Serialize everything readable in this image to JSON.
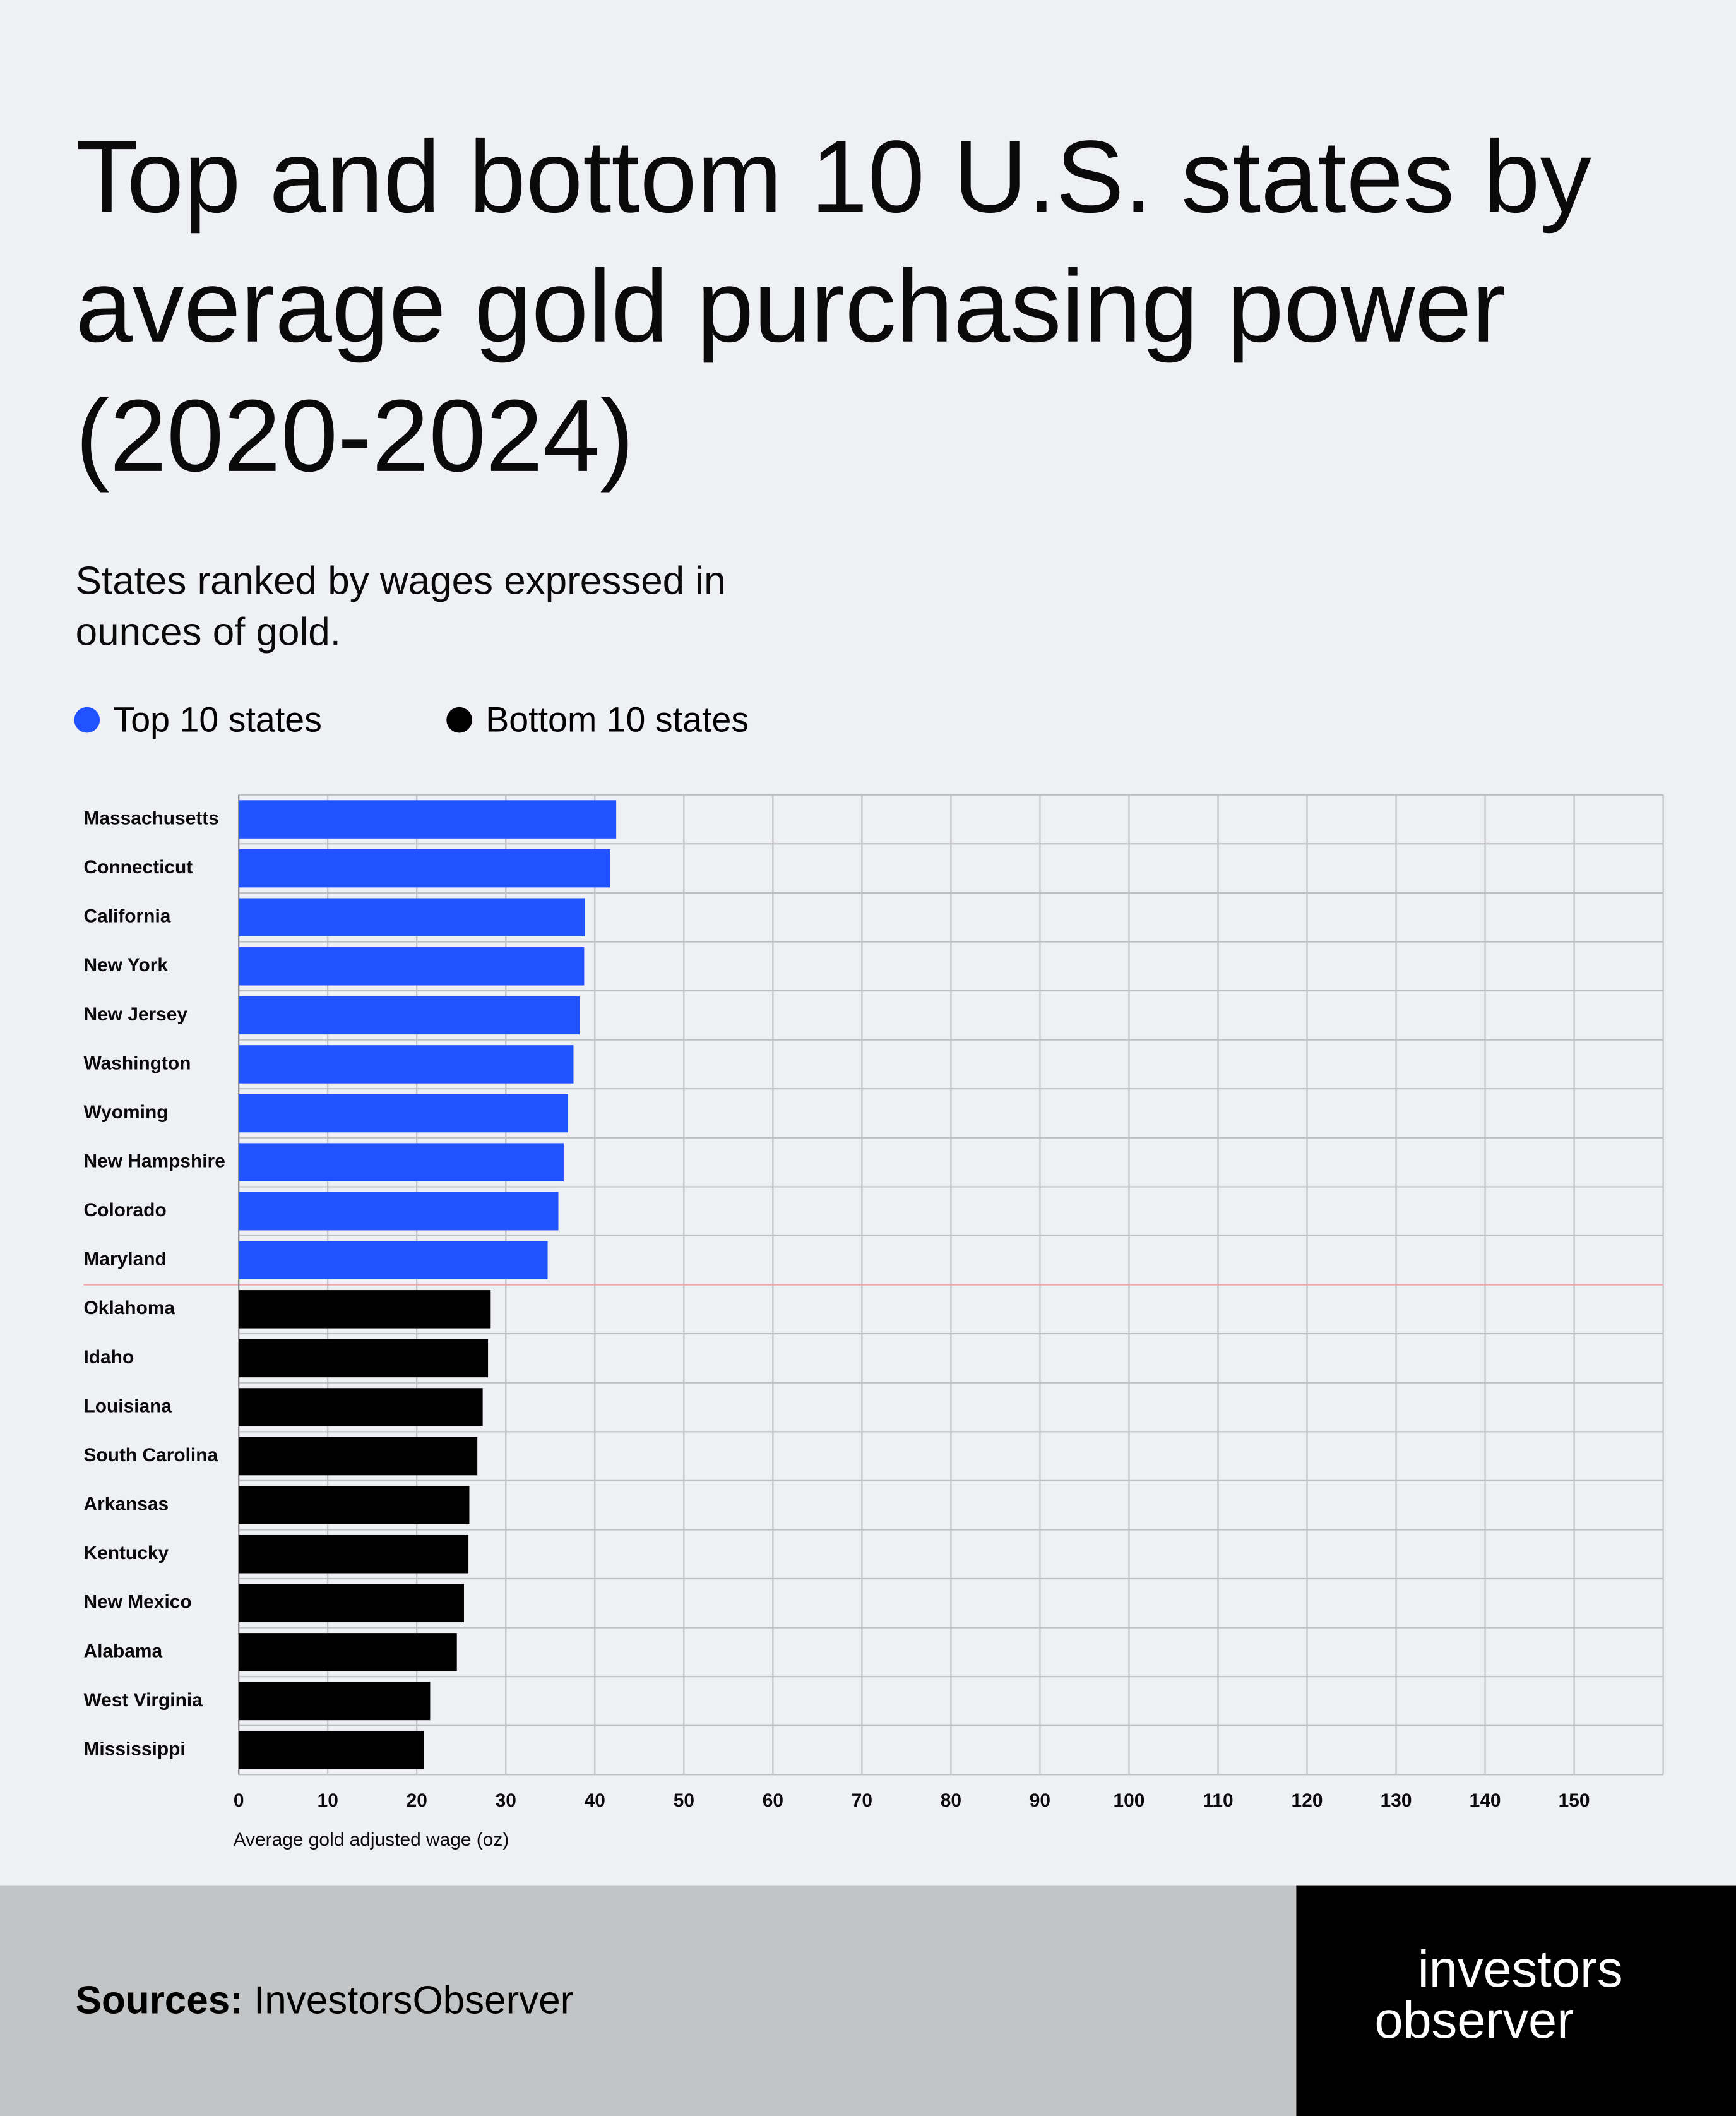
{
  "chart_data": {
    "type": "bar",
    "orientation": "horizontal",
    "title": "Top and bottom 10 U.S. states by average gold purchasing power (2020-2024)",
    "subtitle": "States ranked by wages expressed in ounces of gold.",
    "x_label": "Average gold adjusted wage (oz)",
    "categories": [
      "Massachusetts",
      "Connecticut",
      "California",
      "New York",
      "New Jersey",
      "Washington",
      "Wyoming",
      "New Hampshire",
      "Colorado",
      "Maryland",
      "Oklahoma",
      "Idaho",
      "Louisiana",
      "South Carolina",
      "Arkansas",
      "Kentucky",
      "New Mexico",
      "Alabama",
      "West Virginia",
      "Mississippi"
    ],
    "series": [
      {
        "name": "Top 10 states",
        "color": "#2152ff",
        "values": [
          42.4,
          41.7,
          38.9,
          38.8,
          38.3,
          37.6,
          37.0,
          36.5,
          35.9,
          34.7,
          null,
          null,
          null,
          null,
          null,
          null,
          null,
          null,
          null,
          null
        ]
      },
      {
        "name": "Bottom 10 states",
        "color": "#000000",
        "values": [
          null,
          null,
          null,
          null,
          null,
          null,
          null,
          null,
          null,
          null,
          28.3,
          28.0,
          27.4,
          26.8,
          25.9,
          25.8,
          25.3,
          24.5,
          21.5,
          20.8
        ]
      }
    ],
    "xlim": [
      0,
      160
    ],
    "xticks": [
      0,
      10,
      20,
      30,
      40,
      50,
      60,
      70,
      80,
      90,
      100,
      110,
      120,
      130,
      140,
      150
    ],
    "grid": true,
    "legend": "top-left"
  },
  "footer": {
    "sources_label": "Sources:",
    "sources": "InvestorsObserver",
    "logo": [
      "investors",
      "observer"
    ]
  }
}
